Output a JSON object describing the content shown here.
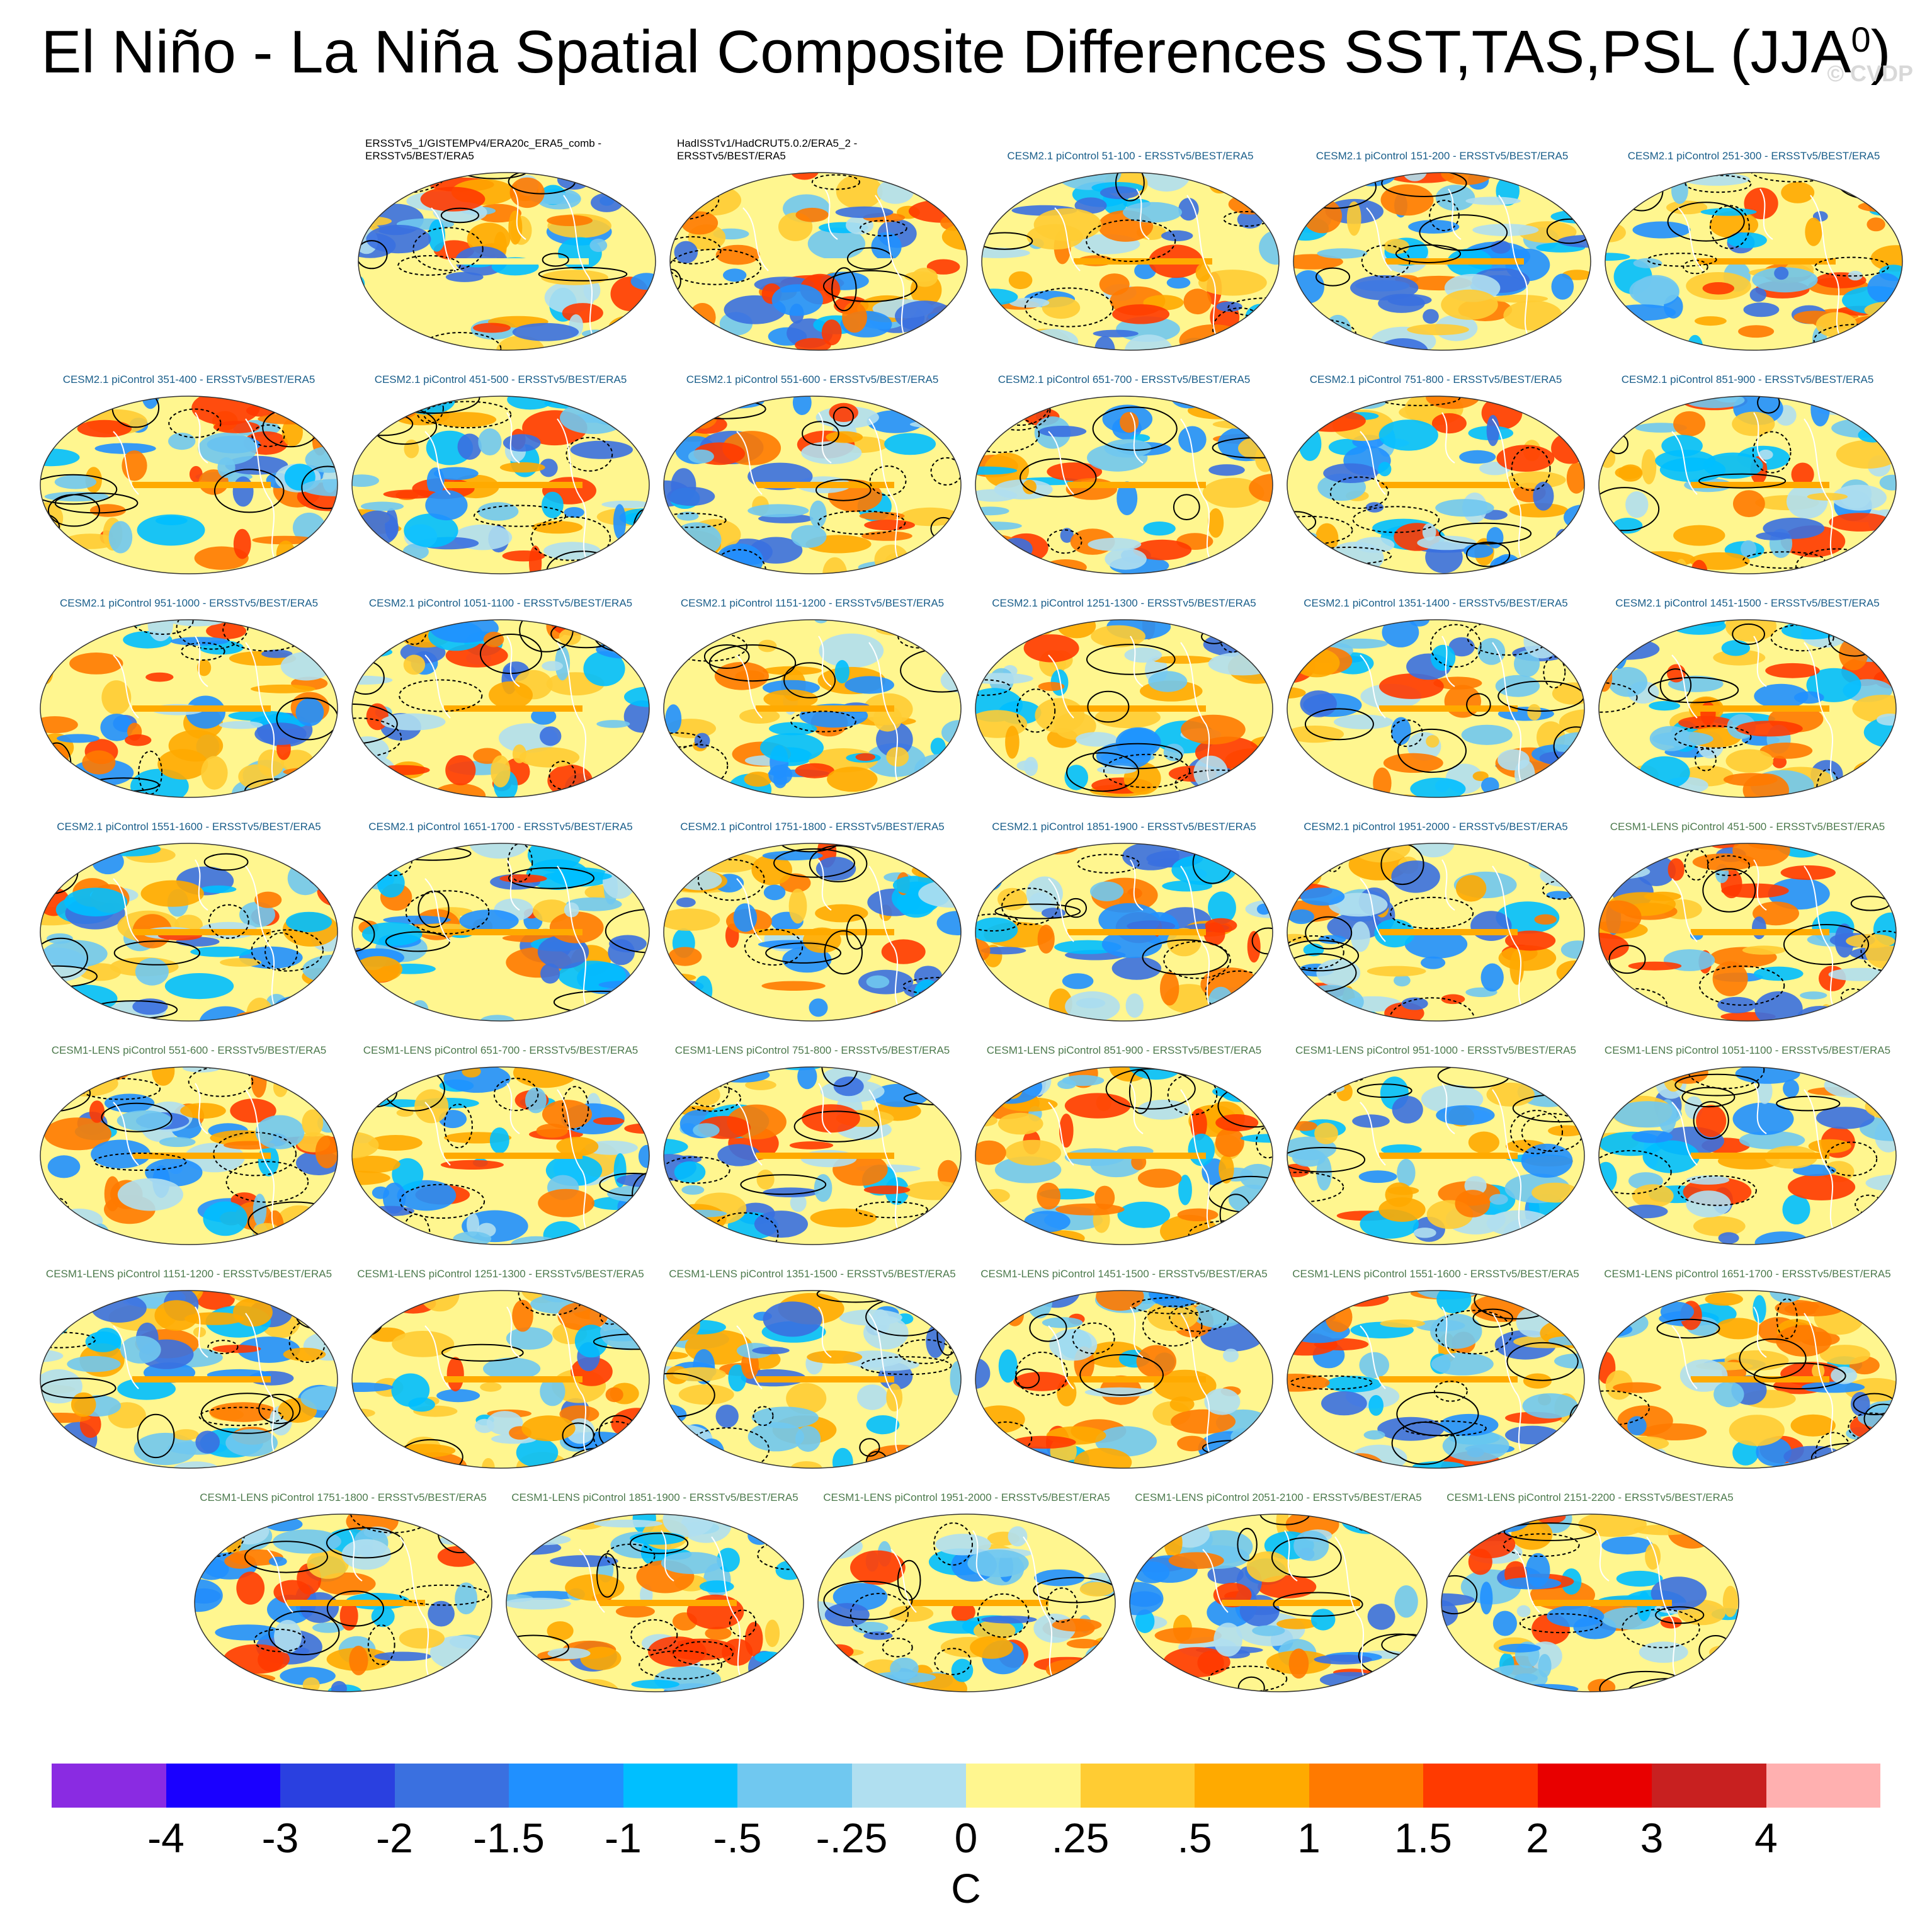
{
  "title": {
    "main": "El Niño - La Niña Spatial Composite Differences SST,TAS,PSL (JJA",
    "sup": "0",
    "close": ")"
  },
  "watermark": "© CVDP",
  "panels": [
    {
      "label": "ERSSTv5_1/GISTEMPv4/ERA20c_ERA5_comb -\nERSSTv5/BEST/ERA5",
      "group": "obs"
    },
    {
      "label": "HadISSTv1/HadCRUT5.0.2/ERA5_2 -\nERSSTv5/BEST/ERA5",
      "group": "obs"
    },
    {
      "label": "CESM2.1 piControl 51-100 - ERSSTv5/BEST/ERA5",
      "group": "cesm2"
    },
    {
      "label": "CESM2.1 piControl 151-200 - ERSSTv5/BEST/ERA5",
      "group": "cesm2"
    },
    {
      "label": "CESM2.1 piControl 251-300 - ERSSTv5/BEST/ERA5",
      "group": "cesm2"
    },
    {
      "label": "CESM2.1 piControl 351-400 - ERSSTv5/BEST/ERA5",
      "group": "cesm2"
    },
    {
      "label": "CESM2.1 piControl 451-500 - ERSSTv5/BEST/ERA5",
      "group": "cesm2"
    },
    {
      "label": "CESM2.1 piControl 551-600 - ERSSTv5/BEST/ERA5",
      "group": "cesm2"
    },
    {
      "label": "CESM2.1 piControl 651-700 - ERSSTv5/BEST/ERA5",
      "group": "cesm2"
    },
    {
      "label": "CESM2.1 piControl 751-800 - ERSSTv5/BEST/ERA5",
      "group": "cesm2"
    },
    {
      "label": "CESM2.1 piControl 851-900 - ERSSTv5/BEST/ERA5",
      "group": "cesm2"
    },
    {
      "label": "CESM2.1 piControl 951-1000 - ERSSTv5/BEST/ERA5",
      "group": "cesm2"
    },
    {
      "label": "CESM2.1 piControl 1051-1100 - ERSSTv5/BEST/ERA5",
      "group": "cesm2"
    },
    {
      "label": "CESM2.1 piControl 1151-1200 - ERSSTv5/BEST/ERA5",
      "group": "cesm2"
    },
    {
      "label": "CESM2.1 piControl 1251-1300 - ERSSTv5/BEST/ERA5",
      "group": "cesm2"
    },
    {
      "label": "CESM2.1 piControl 1351-1400 - ERSSTv5/BEST/ERA5",
      "group": "cesm2"
    },
    {
      "label": "CESM2.1 piControl 1451-1500 - ERSSTv5/BEST/ERA5",
      "group": "cesm2"
    },
    {
      "label": "CESM2.1 piControl 1551-1600 - ERSSTv5/BEST/ERA5",
      "group": "cesm2"
    },
    {
      "label": "CESM2.1 piControl 1651-1700 - ERSSTv5/BEST/ERA5",
      "group": "cesm2"
    },
    {
      "label": "CESM2.1 piControl 1751-1800 - ERSSTv5/BEST/ERA5",
      "group": "cesm2"
    },
    {
      "label": "CESM2.1 piControl 1851-1900 - ERSSTv5/BEST/ERA5",
      "group": "cesm2"
    },
    {
      "label": "CESM2.1 piControl 1951-2000 - ERSSTv5/BEST/ERA5",
      "group": "cesm2"
    },
    {
      "label": "CESM1-LENS piControl 451-500 - ERSSTv5/BEST/ERA5",
      "group": "cesm1"
    },
    {
      "label": "CESM1-LENS piControl 551-600 - ERSSTv5/BEST/ERA5",
      "group": "cesm1"
    },
    {
      "label": "CESM1-LENS piControl 651-700 - ERSSTv5/BEST/ERA5",
      "group": "cesm1"
    },
    {
      "label": "CESM1-LENS piControl 751-800 - ERSSTv5/BEST/ERA5",
      "group": "cesm1"
    },
    {
      "label": "CESM1-LENS piControl 851-900 - ERSSTv5/BEST/ERA5",
      "group": "cesm1"
    },
    {
      "label": "CESM1-LENS piControl 951-1000 - ERSSTv5/BEST/ERA5",
      "group": "cesm1"
    },
    {
      "label": "CESM1-LENS piControl 1051-1100 - ERSSTv5/BEST/ERA5",
      "group": "cesm1"
    },
    {
      "label": "CESM1-LENS piControl 1151-1200 - ERSSTv5/BEST/ERA5",
      "group": "cesm1"
    },
    {
      "label": "CESM1-LENS piControl 1251-1300 - ERSSTv5/BEST/ERA5",
      "group": "cesm1"
    },
    {
      "label": "CESM1-LENS piControl 1351-1500 - ERSSTv5/BEST/ERA5",
      "group": "cesm1"
    },
    {
      "label": "CESM1-LENS piControl 1451-1500 - ERSSTv5/BEST/ERA5",
      "group": "cesm1"
    },
    {
      "label": "CESM1-LENS piControl 1551-1600 - ERSSTv5/BEST/ERA5",
      "group": "cesm1"
    },
    {
      "label": "CESM1-LENS piControl 1651-1700 - ERSSTv5/BEST/ERA5",
      "group": "cesm1"
    },
    {
      "label": "CESM1-LENS piControl 1751-1800 - ERSSTv5/BEST/ERA5",
      "group": "cesm1"
    },
    {
      "label": "CESM1-LENS piControl 1851-1900 - ERSSTv5/BEST/ERA5",
      "group": "cesm1"
    },
    {
      "label": "CESM1-LENS piControl 1951-2000 - ERSSTv5/BEST/ERA5",
      "group": "cesm1"
    },
    {
      "label": "CESM1-LENS piControl 2051-2100 - ERSSTv5/BEST/ERA5",
      "group": "cesm1"
    },
    {
      "label": "CESM1-LENS piControl 2151-2200 - ERSSTv5/BEST/ERA5",
      "group": "cesm1"
    }
  ],
  "group_colors": {
    "obs": "#000000",
    "cesm2": "#1a5e8a",
    "cesm1": "#4d7a4d"
  },
  "colorbar": {
    "colors": [
      "#8a2be2",
      "#1a00ff",
      "#2a40e0",
      "#3a70e0",
      "#2090ff",
      "#00bfff",
      "#70c8f0",
      "#b0dff0",
      "#fff68f",
      "#ffcc33",
      "#ffaa00",
      "#ff7a00",
      "#ff3a00",
      "#e80000",
      "#c82020",
      "#ffb0b0"
    ],
    "ticks": [
      "-4",
      "-3",
      "-2",
      "-1.5",
      "-1",
      "-.5",
      "-.25",
      "0",
      ".25",
      ".5",
      "1",
      "1.5",
      "2",
      "3",
      "4"
    ],
    "units": "C"
  },
  "chart_data": {
    "type": "heatmap",
    "title": "El Niño - La Niña Spatial Composite Differences SST,TAS,PSL (JJA0)",
    "panel_count": 40,
    "color_levels": [
      -4,
      -3,
      -2,
      -1.5,
      -1,
      -0.5,
      -0.25,
      0,
      0.25,
      0.5,
      1,
      1.5,
      2,
      3,
      4
    ],
    "units": "C",
    "overlay": "PSL contours (solid positive, dashed negative)"
  }
}
